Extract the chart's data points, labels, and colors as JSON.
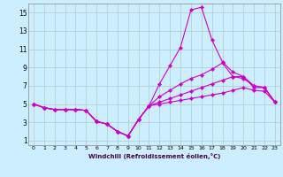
{
  "xlabel": "Windchill (Refroidissement éolien,°C)",
  "bg_color": "#cceeff",
  "grid_color": "#aacccc",
  "line_color": "#cc00cc",
  "xlim": [
    -0.5,
    23.5
  ],
  "ylim": [
    0.5,
    16.0
  ],
  "xticks": [
    0,
    1,
    2,
    3,
    4,
    5,
    6,
    7,
    8,
    9,
    10,
    11,
    12,
    13,
    14,
    15,
    16,
    17,
    18,
    19,
    20,
    21,
    22,
    23
  ],
  "yticks": [
    1,
    3,
    5,
    7,
    9,
    11,
    13,
    15
  ],
  "lines": [
    {
      "x": [
        0,
        1,
        2,
        3,
        4,
        5,
        6,
        7,
        8,
        9,
        10,
        11,
        12,
        13,
        14,
        15,
        16,
        17,
        18,
        19,
        20,
        21,
        22,
        23
      ],
      "y": [
        5.0,
        4.6,
        4.4,
        4.4,
        4.4,
        4.3,
        3.1,
        2.8,
        2.0,
        1.5,
        3.3,
        4.8,
        7.2,
        9.2,
        11.2,
        15.3,
        15.6,
        12.0,
        9.6,
        8.5,
        8.0,
        6.8,
        6.8,
        5.2
      ]
    },
    {
      "x": [
        0,
        1,
        2,
        3,
        4,
        5,
        6,
        7,
        8,
        9,
        10,
        11,
        12,
        13,
        14,
        15,
        16,
        17,
        18,
        19,
        20,
        21,
        22,
        23
      ],
      "y": [
        5.0,
        4.6,
        4.4,
        4.4,
        4.4,
        4.3,
        3.1,
        2.8,
        2.0,
        1.5,
        3.3,
        4.8,
        5.8,
        6.5,
        7.2,
        7.8,
        8.2,
        8.8,
        9.5,
        8.0,
        7.8,
        7.0,
        6.8,
        5.2
      ]
    },
    {
      "x": [
        0,
        1,
        2,
        3,
        4,
        5,
        6,
        7,
        8,
        9,
        10,
        11,
        12,
        13,
        14,
        15,
        16,
        17,
        18,
        19,
        20,
        21,
        22,
        23
      ],
      "y": [
        5.0,
        4.6,
        4.4,
        4.4,
        4.4,
        4.3,
        3.1,
        2.8,
        2.0,
        1.5,
        3.3,
        4.8,
        5.2,
        5.6,
        6.0,
        6.4,
        6.8,
        7.2,
        7.6,
        8.0,
        8.0,
        7.0,
        6.8,
        5.2
      ]
    },
    {
      "x": [
        0,
        1,
        2,
        3,
        4,
        5,
        6,
        7,
        8,
        9,
        10,
        11,
        12,
        13,
        14,
        15,
        16,
        17,
        18,
        19,
        20,
        21,
        22,
        23
      ],
      "y": [
        5.0,
        4.6,
        4.4,
        4.4,
        4.4,
        4.3,
        3.1,
        2.8,
        2.0,
        1.5,
        3.3,
        4.8,
        5.0,
        5.2,
        5.4,
        5.6,
        5.8,
        6.0,
        6.2,
        6.5,
        6.8,
        6.5,
        6.4,
        5.2
      ]
    }
  ]
}
